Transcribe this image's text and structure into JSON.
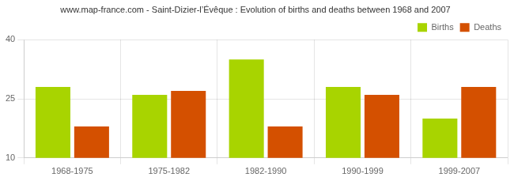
{
  "chart_data": {
    "type": "bar",
    "title": "www.map-france.com - Saint-Dizier-l’Évêque : Evolution of births and deaths between 1968 and 2007",
    "categories": [
      "1968-1975",
      "1975-1982",
      "1982-1990",
      "1990-1999",
      "1999-2007"
    ],
    "series": [
      {
        "name": "Births",
        "color": "#a8d400",
        "values": [
          28,
          26,
          35,
          28,
          20
        ]
      },
      {
        "name": "Deaths",
        "color": "#d45000",
        "values": [
          18,
          27,
          18,
          26,
          28
        ]
      }
    ],
    "ylim": [
      10,
      40
    ],
    "yticks": [
      10,
      25,
      40
    ],
    "grid": true,
    "legend": "upper right"
  }
}
